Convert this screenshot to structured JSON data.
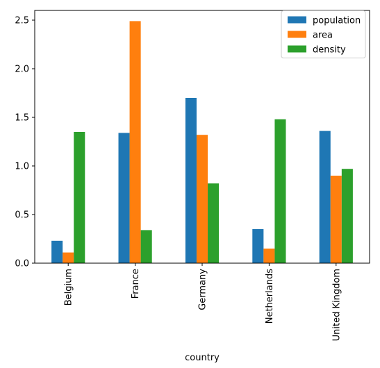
{
  "chart_data": {
    "type": "bar",
    "xlabel": "country",
    "ylabel": "",
    "ylim": [
      0,
      2.6
    ],
    "yticks": [
      0.0,
      0.5,
      1.0,
      1.5,
      2.0,
      2.5
    ],
    "ytick_labels": [
      "0.0",
      "0.5",
      "1.0",
      "1.5",
      "2.0",
      "2.5"
    ],
    "categories": [
      "Belgium",
      "France",
      "Germany",
      "Netherlands",
      "United Kingdom"
    ],
    "series": [
      {
        "name": "population",
        "color": "#1f77b4",
        "values": [
          0.23,
          1.34,
          1.7,
          0.35,
          1.36
        ]
      },
      {
        "name": "area",
        "color": "#ff7f0e",
        "values": [
          0.11,
          2.49,
          1.32,
          0.15,
          0.9
        ]
      },
      {
        "name": "density",
        "color": "#2ca02c",
        "values": [
          1.35,
          0.34,
          0.82,
          1.48,
          0.97
        ]
      }
    ],
    "legend_position": "top-right",
    "grid": false
  }
}
